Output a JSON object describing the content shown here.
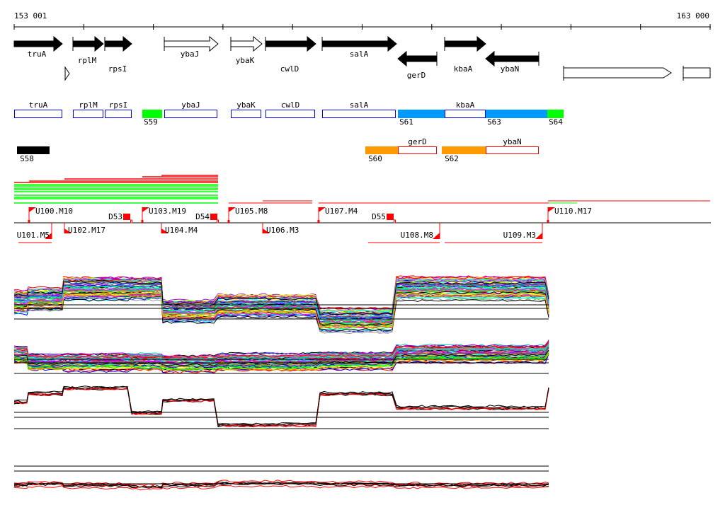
{
  "ruler": {
    "start_label": "153 001",
    "end_label": "163 000"
  },
  "genes": [
    {
      "name": "truA",
      "strand": "+",
      "style": "filled"
    },
    {
      "name": "rplM",
      "strand": "+",
      "style": "filled"
    },
    {
      "name": "rpsI",
      "strand": "+",
      "style": "filled"
    },
    {
      "name": "ybaJ",
      "strand": "+",
      "style": "open"
    },
    {
      "name": "ybaK",
      "strand": "+",
      "style": "open"
    },
    {
      "name": "cwlD",
      "strand": "+",
      "style": "filled"
    },
    {
      "name": "salA",
      "strand": "+",
      "style": "filled"
    },
    {
      "name": "gerD",
      "strand": "-",
      "style": "filled"
    },
    {
      "name": "kbaA",
      "strand": "+",
      "style": "filled"
    },
    {
      "name": "ybaN",
      "strand": "-",
      "style": "filled"
    }
  ],
  "features_fwd": [
    {
      "label": "truA",
      "kind": "gene"
    },
    {
      "label": "rplM",
      "kind": "gene"
    },
    {
      "label": "rpsI",
      "kind": "gene"
    },
    {
      "label": "S59",
      "kind": "segment",
      "color": "#00ff00"
    },
    {
      "label": "ybaJ",
      "kind": "gene"
    },
    {
      "label": "ybaK",
      "kind": "gene"
    },
    {
      "label": "cwlD",
      "kind": "gene"
    },
    {
      "label": "salA",
      "kind": "gene"
    },
    {
      "label": "S61",
      "kind": "segment",
      "color": "#0099ff"
    },
    {
      "label": "kbaA",
      "kind": "gene"
    },
    {
      "label": "S63",
      "kind": "segment",
      "color": "#0099ff"
    },
    {
      "label": "S64",
      "kind": "segment",
      "color": "#00ff00"
    }
  ],
  "features_rev": [
    {
      "label": "S58",
      "kind": "segment",
      "color": "#000000"
    },
    {
      "label": "S60",
      "kind": "segment",
      "color": "#ff9900"
    },
    {
      "label": "gerD",
      "kind": "gene"
    },
    {
      "label": "S62",
      "kind": "segment",
      "color": "#ff9900"
    },
    {
      "label": "ybaN",
      "kind": "gene"
    }
  ],
  "markers_top": [
    "U100.M10",
    "U102.M17",
    "U103.M19",
    "U104.M4",
    "U105.M8",
    "U106.M3",
    "U107.M4",
    "U110.M17"
  ],
  "markers_bottom": [
    "U101.M5",
    "U108.M8",
    "U109.M3"
  ],
  "deletions": [
    "D53",
    "D54",
    "D55"
  ],
  "colors": {
    "gene_box": "#0000ff",
    "rev_box": "#ff0000",
    "marker": "#ff0000",
    "green": "#00ff00"
  }
}
